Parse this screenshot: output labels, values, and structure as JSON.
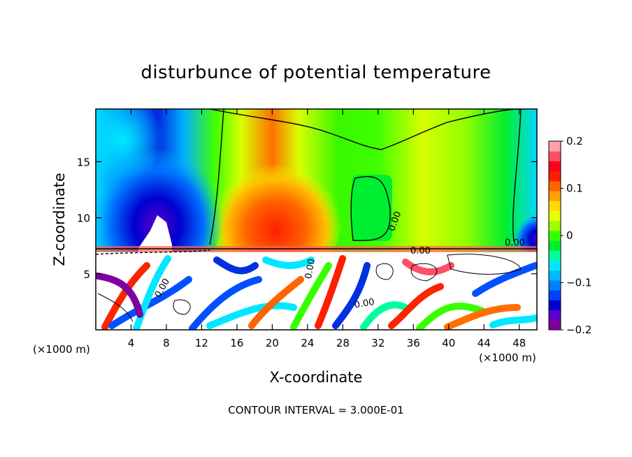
{
  "chart_data": {
    "type": "heatmap",
    "title": "disturbunce of potential temperature",
    "xlabel": "X-coordinate",
    "ylabel": "Z-coordinate",
    "x_unit": "(×1000 m)",
    "x_unit_right": "(×1000 m)",
    "xlim": [
      0,
      50
    ],
    "ylim": [
      0,
      19.7
    ],
    "x_ticks": [
      4,
      8,
      12,
      16,
      20,
      24,
      28,
      32,
      36,
      40,
      44,
      48
    ],
    "x_tick_labels": [
      "4",
      "8",
      "12",
      "16",
      "20",
      "24",
      "28",
      "32",
      "36",
      "40",
      "44",
      "48"
    ],
    "y_ticks": [
      5,
      10,
      15
    ],
    "y_tick_labels": [
      "5",
      "10",
      "15"
    ],
    "colorbar": {
      "range": [
        -0.2,
        0.2
      ],
      "ticks": [
        0.2,
        0.1,
        0,
        -0.1,
        -0.2
      ],
      "tick_labels": [
        "0.2",
        "0.1",
        "0",
        "−0.1",
        "−0.2"
      ],
      "colors": [
        "#7f00a0",
        "#5a00c8",
        "#0000d0",
        "#0040ff",
        "#0080ff",
        "#00b8ff",
        "#00e8ff",
        "#00ff9c",
        "#00ee30",
        "#38ff00",
        "#a0ff00",
        "#e8ff00",
        "#ffdc00",
        "#ffa000",
        "#ff6400",
        "#ff1e00",
        "#ff0020",
        "#ff4f64",
        "#ffa0a8"
      ]
    },
    "contour_labels": [
      {
        "text": "0.00",
        "x": 34.2,
        "y": 9.6,
        "rot": -70
      },
      {
        "text": "0.00",
        "x": 47.5,
        "y": 7.5,
        "rot": 0
      },
      {
        "text": "0.00",
        "x": 36.8,
        "y": 6.8,
        "rot": 0
      },
      {
        "text": "0.00",
        "x": 24.6,
        "y": 5.4,
        "rot": -80
      },
      {
        "text": "0.00",
        "x": 7.8,
        "y": 3.6,
        "rot": -60
      },
      {
        "text": "0.00",
        "x": 30.5,
        "y": 2.1,
        "rot": -10
      }
    ],
    "footnote": "CONTOUR INTERVAL = 3.000E-01",
    "grid": false,
    "legend_placement": "right"
  }
}
